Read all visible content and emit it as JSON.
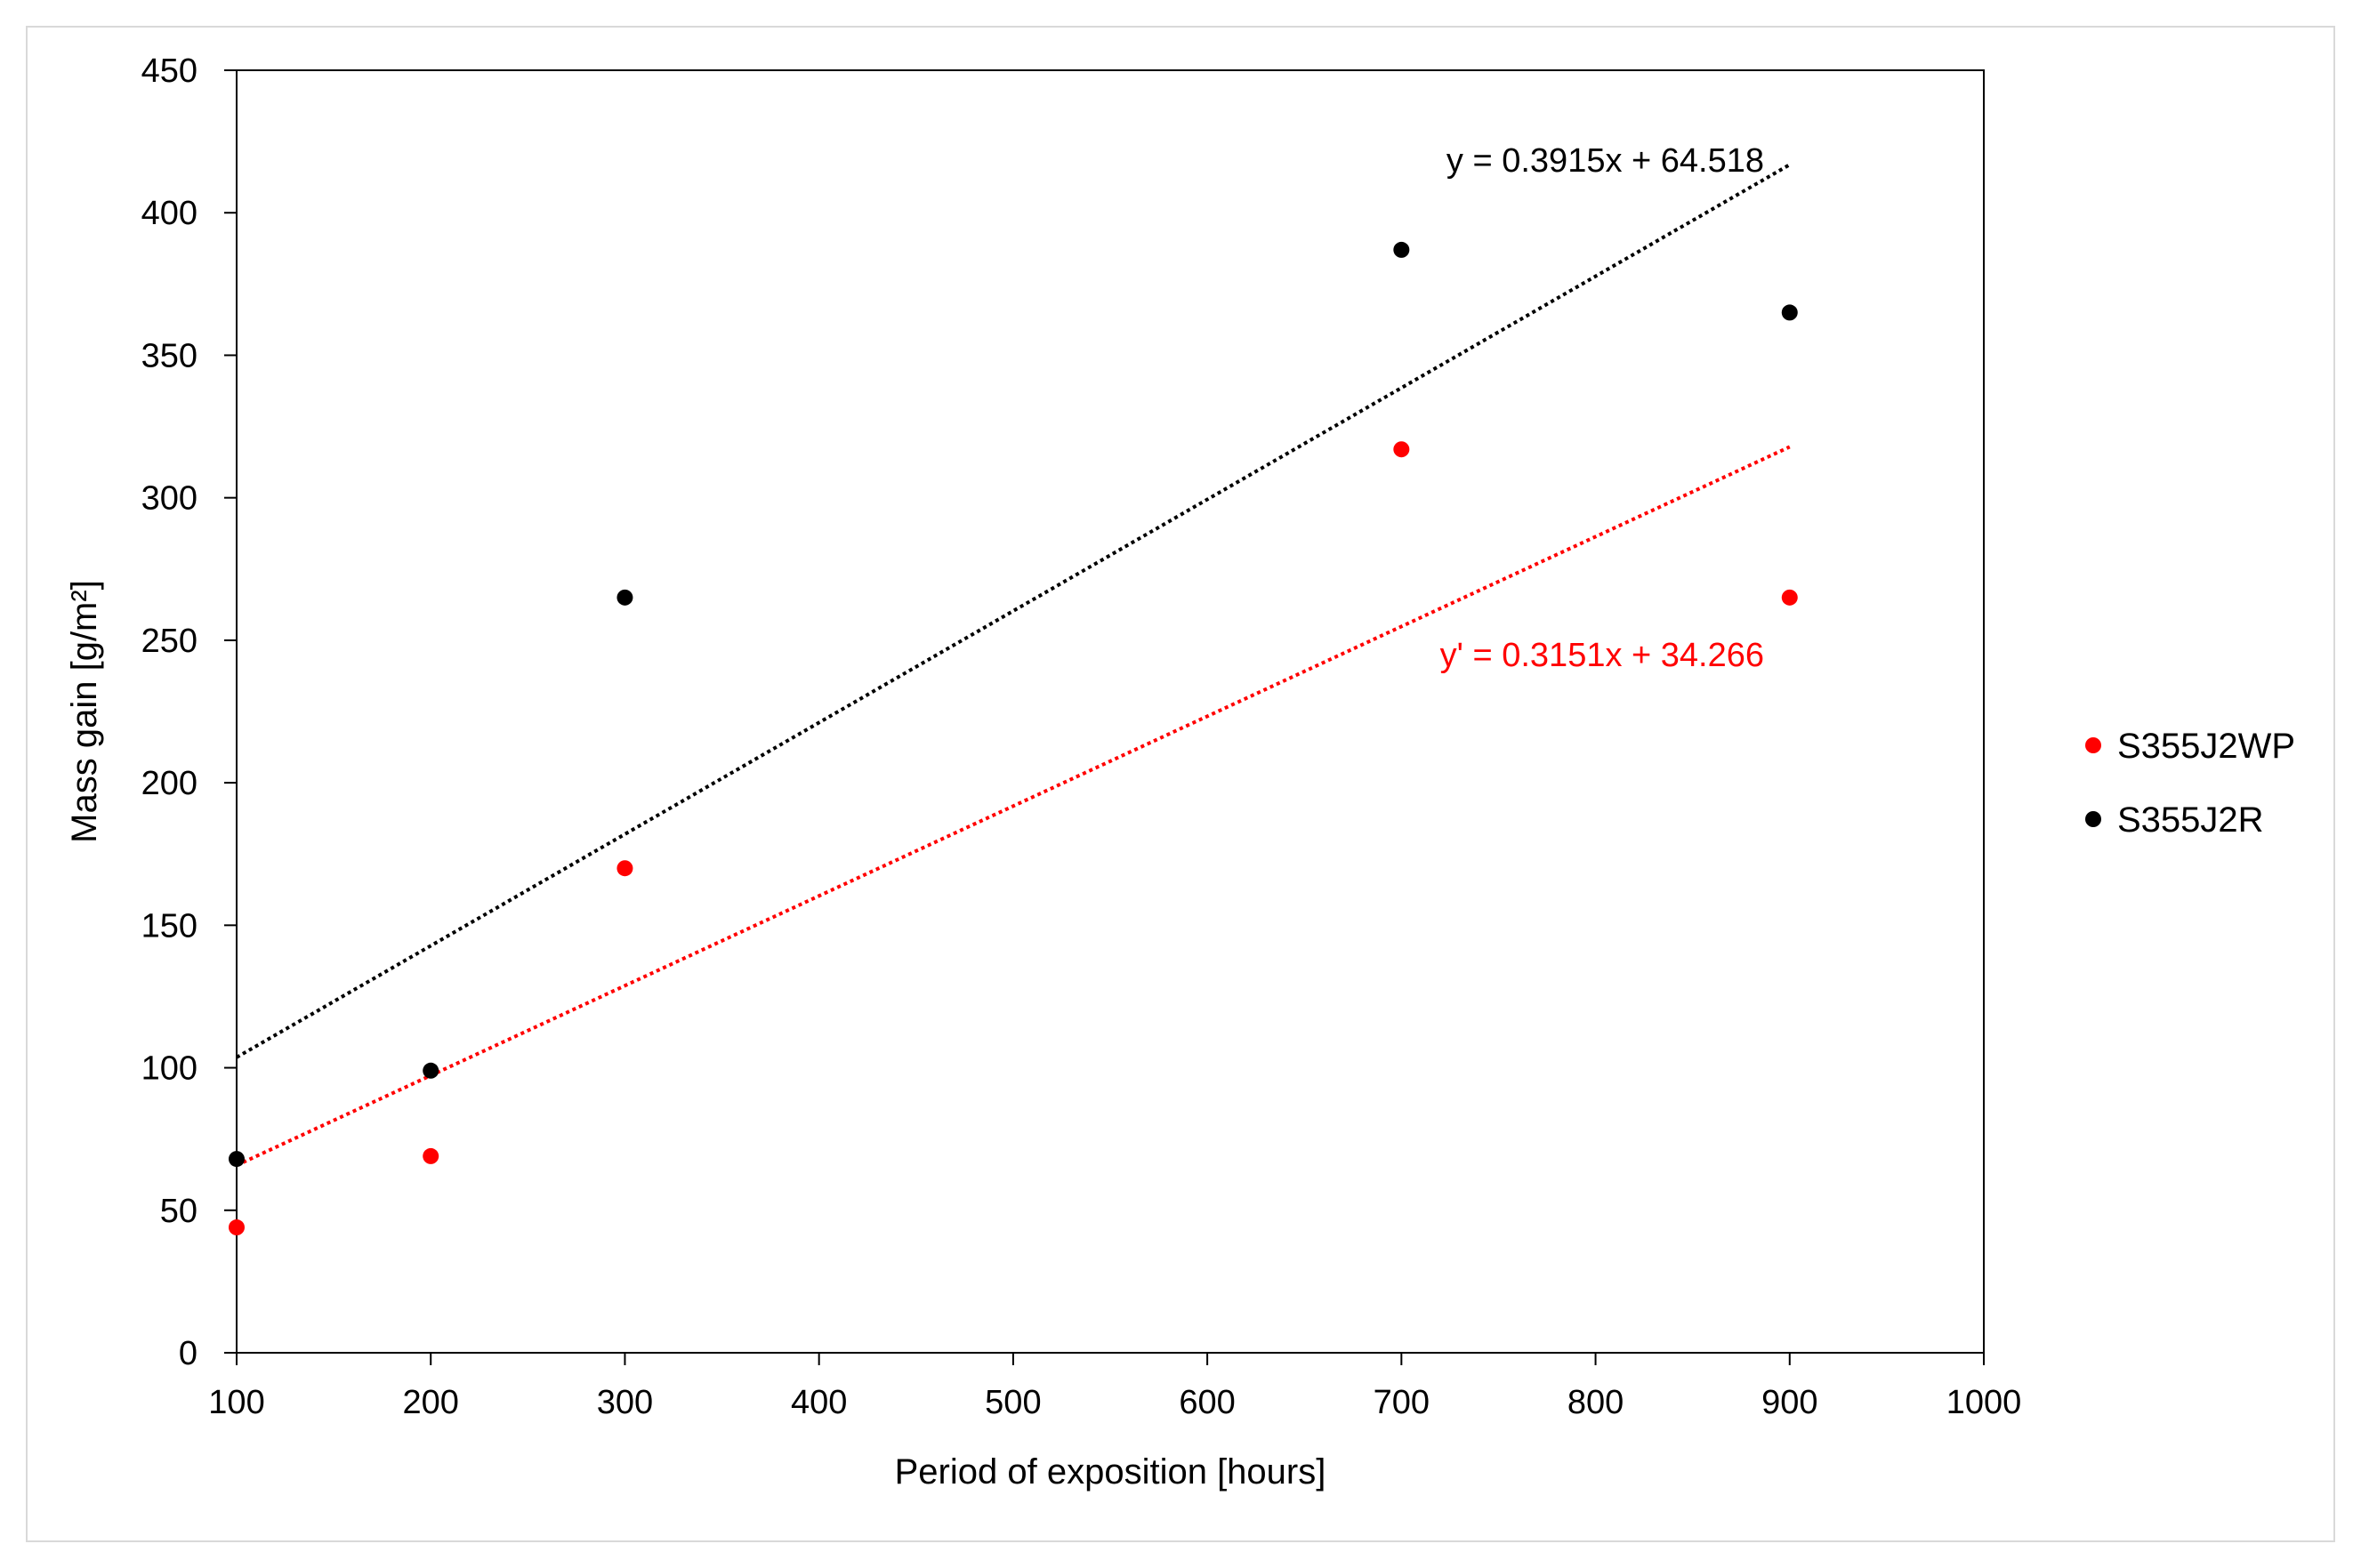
{
  "chart_data": {
    "type": "scatter",
    "title": "",
    "xlabel": "Period of exposition [hours]",
    "ylabel": "Mass gain [g/m²]",
    "xlim": [
      100,
      1000
    ],
    "ylim": [
      0,
      450
    ],
    "x_ticks": [
      100,
      200,
      300,
      400,
      500,
      600,
      700,
      800,
      900,
      1000
    ],
    "y_ticks": [
      0,
      50,
      100,
      150,
      200,
      250,
      300,
      350,
      400,
      450
    ],
    "grid": false,
    "legend_position": "right",
    "series": [
      {
        "name": "S355J2WP",
        "color": "#ff0000",
        "x": [
          100,
          200,
          300,
          700,
          900
        ],
        "y": [
          44,
          69,
          170,
          317,
          265
        ],
        "trendline": {
          "slope": 0.3151,
          "intercept": 34.266,
          "x_range": [
            100,
            900
          ],
          "style": "dotted",
          "label": "y' = 0.3151x + 34.266"
        }
      },
      {
        "name": "S355J2R",
        "color": "#000000",
        "x": [
          100,
          200,
          300,
          700,
          900
        ],
        "y": [
          68,
          99,
          265,
          387,
          365
        ],
        "trendline": {
          "slope": 0.3915,
          "intercept": 64.518,
          "x_range": [
            100,
            900
          ],
          "style": "dotted",
          "label": "y = 0.3915x + 64.518"
        }
      }
    ]
  }
}
